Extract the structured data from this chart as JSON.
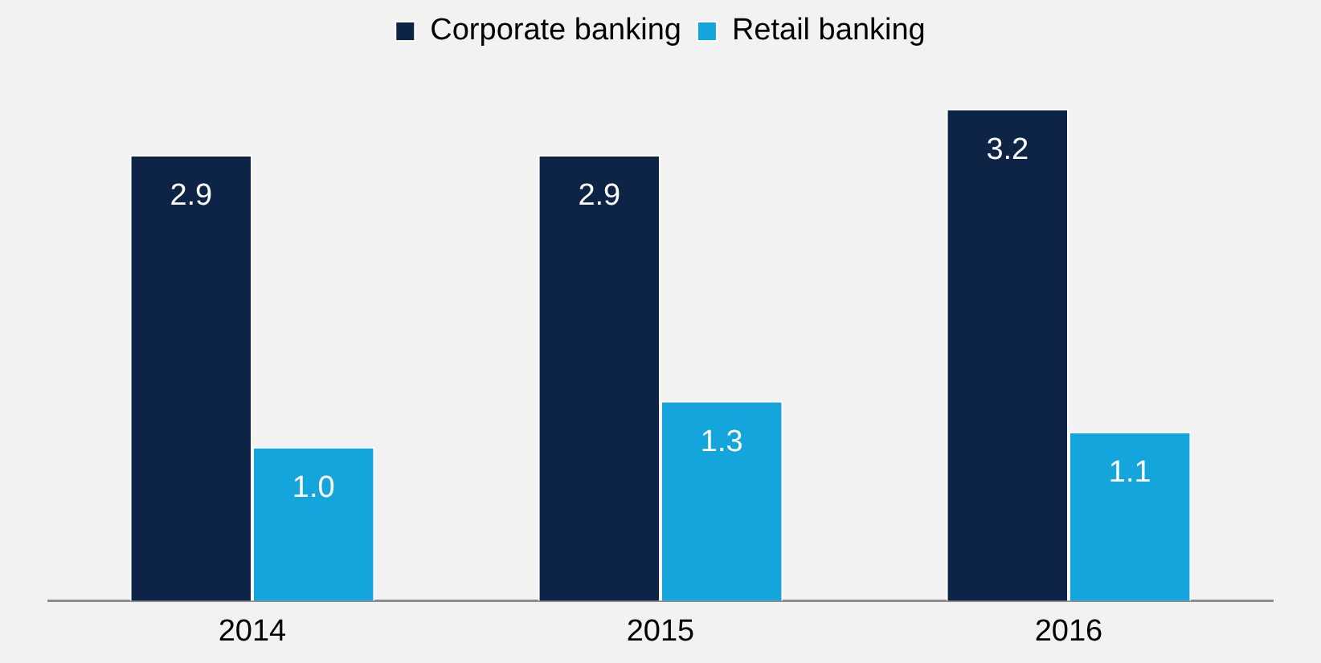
{
  "chart_data": {
    "type": "bar",
    "categories": [
      "2014",
      "2015",
      "2016"
    ],
    "series": [
      {
        "name": "Corporate banking",
        "color": "#0d2447",
        "values": [
          2.9,
          2.9,
          3.2
        ],
        "value_labels": [
          "2.9",
          "2.9",
          "3.2"
        ]
      },
      {
        "name": "Retail banking",
        "color": "#14a5dc",
        "values": [
          1.0,
          1.3,
          1.1
        ],
        "value_labels": [
          "1.0",
          "1.3",
          "1.1"
        ]
      }
    ],
    "legend": "top",
    "grid": false
  }
}
